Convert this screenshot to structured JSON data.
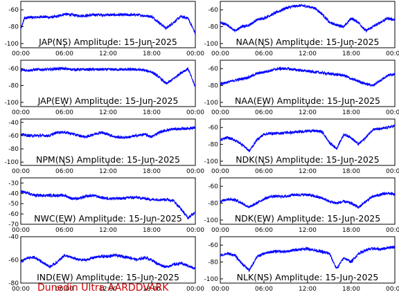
{
  "footer": "Dunedin Ultra AARDDVARK",
  "colors": {
    "trace": "#0000ff",
    "axis": "#000000",
    "footer": "#cc0000"
  },
  "chart_data": [
    {
      "type": "line",
      "title": "JAP(NS) Amplitude: 15-Jun-2025",
      "x_ticks": [
        "00:00",
        "06:00",
        "12:00",
        "18:00",
        "00:00"
      ],
      "xlim": [
        0,
        24
      ],
      "y_ticks": [
        -100,
        -80,
        -60
      ],
      "ylim": [
        -105,
        -50
      ],
      "series": [
        {
          "x": [
            0,
            0.5,
            1,
            2,
            3,
            4,
            5,
            6,
            7,
            8,
            9,
            10,
            11,
            12,
            13,
            14,
            15,
            16,
            17,
            18,
            19,
            20,
            21,
            22,
            23,
            24
          ],
          "y": [
            -83,
            -70,
            -69,
            -69,
            -68,
            -69,
            -68,
            -65,
            -66,
            -67,
            -67,
            -66,
            -66,
            -66,
            -66,
            -66,
            -66,
            -66,
            -67,
            -68,
            -75,
            -82,
            -75,
            -68,
            -70,
            -88
          ]
        }
      ]
    },
    {
      "type": "line",
      "title": "NAA(NS) Amplitude: 15-Jun-2025",
      "x_ticks": [
        "00:00",
        "06:00",
        "12:00",
        "18:00",
        "00:00"
      ],
      "xlim": [
        0,
        24
      ],
      "y_ticks": [
        -100,
        -80,
        -60
      ],
      "ylim": [
        -105,
        -50
      ],
      "series": [
        {
          "x": [
            0,
            1,
            2,
            3,
            4,
            5,
            6,
            7,
            8,
            9,
            10,
            11,
            12,
            13,
            14,
            15,
            16,
            17,
            18,
            19,
            20,
            21,
            22,
            23,
            24
          ],
          "y": [
            -75,
            -78,
            -85,
            -80,
            -78,
            -72,
            -70,
            -66,
            -62,
            -58,
            -56,
            -55,
            -56,
            -58,
            -65,
            -75,
            -78,
            -80,
            -70,
            -75,
            -85,
            -80,
            -75,
            -70,
            -72
          ]
        }
      ]
    },
    {
      "type": "line",
      "title": "JAP(EW) Amplitude: 15-Jun-2025",
      "x_ticks": [
        "00:00",
        "06:00",
        "12:00",
        "18:00",
        "00:00"
      ],
      "xlim": [
        0,
        24
      ],
      "y_ticks": [
        -100,
        -80,
        -60
      ],
      "ylim": [
        -105,
        -50
      ],
      "series": [
        {
          "x": [
            0,
            1,
            2,
            3,
            4,
            5,
            6,
            7,
            8,
            9,
            10,
            11,
            12,
            13,
            14,
            15,
            16,
            17,
            18,
            19,
            20,
            21,
            22,
            23,
            24
          ],
          "y": [
            -62,
            -62,
            -61,
            -61,
            -61,
            -60,
            -60,
            -61,
            -61,
            -61,
            -61,
            -61,
            -61,
            -61,
            -61,
            -61,
            -61,
            -62,
            -64,
            -70,
            -78,
            -72,
            -65,
            -60,
            -82
          ]
        }
      ]
    },
    {
      "type": "line",
      "title": "NAA(EW) Amplitude: 15-Jun-2025",
      "x_ticks": [
        "00:00",
        "06:00",
        "12:00",
        "18:00",
        "00:00"
      ],
      "xlim": [
        0,
        24
      ],
      "y_ticks": [
        -100,
        -80,
        -60
      ],
      "ylim": [
        -105,
        -50
      ],
      "series": [
        {
          "x": [
            0,
            1,
            2,
            3,
            4,
            5,
            6,
            7,
            8,
            9,
            10,
            11,
            12,
            13,
            14,
            15,
            16,
            17,
            18,
            19,
            20,
            21,
            22,
            23,
            24
          ],
          "y": [
            -78,
            -76,
            -74,
            -72,
            -70,
            -66,
            -64,
            -62,
            -60,
            -60,
            -61,
            -62,
            -63,
            -64,
            -65,
            -66,
            -67,
            -68,
            -72,
            -75,
            -78,
            -80,
            -74,
            -68,
            -66
          ]
        }
      ]
    },
    {
      "type": "line",
      "title": "NPM(NS) Amplitude: 15-Jun-2025",
      "x_ticks": [
        "00:00",
        "06:00",
        "12:00",
        "18:00",
        "00:00"
      ],
      "xlim": [
        0,
        24
      ],
      "y_ticks": [
        -100,
        -80,
        -60,
        -40
      ],
      "ylim": [
        -105,
        -35
      ],
      "series": [
        {
          "x": [
            0,
            1,
            2,
            3,
            4,
            5,
            6,
            7,
            8,
            9,
            10,
            11,
            12,
            13,
            14,
            15,
            16,
            17,
            18,
            19,
            20,
            21,
            22,
            23,
            24
          ],
          "y": [
            -58,
            -60,
            -60,
            -60,
            -60,
            -55,
            -55,
            -57,
            -60,
            -62,
            -58,
            -55,
            -58,
            -62,
            -63,
            -62,
            -60,
            -58,
            -62,
            -55,
            -52,
            -50,
            -50,
            -49,
            -48
          ]
        }
      ]
    },
    {
      "type": "line",
      "title": "NDK(NS) Amplitude: 15-Jun-2025",
      "x_ticks": [
        "00:00",
        "06:00",
        "12:00",
        "18:00",
        "00:00"
      ],
      "xlim": [
        0,
        24
      ],
      "y_ticks": [
        -100,
        -80,
        -60
      ],
      "ylim": [
        -105,
        -50
      ],
      "series": [
        {
          "x": [
            0,
            1,
            2,
            3,
            4,
            5,
            6,
            7,
            8,
            9,
            10,
            11,
            12,
            13,
            14,
            15,
            16,
            17,
            18,
            19,
            20,
            21,
            22,
            23,
            24
          ],
          "y": [
            -75,
            -72,
            -75,
            -80,
            -88,
            -75,
            -68,
            -67,
            -67,
            -66,
            -66,
            -65,
            -64,
            -64,
            -65,
            -78,
            -85,
            -68,
            -72,
            -80,
            -72,
            -62,
            -62,
            -60,
            -58
          ]
        }
      ]
    },
    {
      "type": "line",
      "title": "NWC(EW) Amplitude: 15-Jun-2025",
      "x_ticks": [
        "00:00",
        "06:00",
        "12:00",
        "18:00",
        "00:00"
      ],
      "xlim": [
        0,
        24
      ],
      "y_ticks": [
        -70,
        -60,
        -50,
        -40,
        -30
      ],
      "ylim": [
        -70,
        -25
      ],
      "series": [
        {
          "x": [
            0,
            1,
            2,
            3,
            4,
            5,
            6,
            7,
            8,
            9,
            10,
            11,
            12,
            13,
            14,
            15,
            16,
            17,
            18,
            19,
            20,
            21,
            22,
            23,
            24
          ],
          "y": [
            -38,
            -40,
            -42,
            -42,
            -42,
            -42,
            -42,
            -45,
            -45,
            -43,
            -42,
            -44,
            -45,
            -45,
            -45,
            -44,
            -44,
            -45,
            -46,
            -46,
            -46,
            -47,
            -55,
            -64,
            -58
          ]
        }
      ]
    },
    {
      "type": "line",
      "title": "NDK(EW) Amplitude: 15-Jun-2025",
      "x_ticks": [
        "00:00",
        "06:00",
        "12:00",
        "18:00",
        "00:00"
      ],
      "xlim": [
        0,
        24
      ],
      "y_ticks": [
        -100,
        -80,
        -60
      ],
      "ylim": [
        -105,
        -50
      ],
      "series": [
        {
          "x": [
            0,
            1,
            2,
            3,
            4,
            5,
            6,
            7,
            8,
            9,
            10,
            11,
            12,
            13,
            14,
            15,
            16,
            17,
            18,
            19,
            20,
            21,
            22,
            23,
            24
          ],
          "y": [
            -78,
            -75,
            -76,
            -80,
            -85,
            -80,
            -75,
            -72,
            -72,
            -72,
            -70,
            -70,
            -70,
            -72,
            -74,
            -78,
            -80,
            -78,
            -80,
            -85,
            -78,
            -72,
            -70,
            -68,
            -70
          ]
        }
      ]
    },
    {
      "type": "line",
      "title": "IND(EW) Amplitude: 15-Jun-2025",
      "x_ticks": [
        "00:00",
        "06:00",
        "12:00",
        "18:00",
        "00:00"
      ],
      "xlim": [
        0,
        24
      ],
      "y_ticks": [
        -80,
        -60,
        -40
      ],
      "ylim": [
        -80,
        -40
      ],
      "series": [
        {
          "x": [
            0,
            1,
            2,
            3,
            4,
            5,
            6,
            7,
            8,
            9,
            10,
            11,
            12,
            13,
            14,
            15,
            16,
            17,
            18,
            19,
            20,
            21,
            22,
            23,
            24
          ],
          "y": [
            -62,
            -58,
            -58,
            -62,
            -66,
            -62,
            -56,
            -58,
            -60,
            -60,
            -58,
            -57,
            -57,
            -56,
            -57,
            -58,
            -60,
            -58,
            -60,
            -64,
            -66,
            -64,
            -63,
            -65,
            -68
          ]
        }
      ]
    },
    {
      "type": "line",
      "title": "NLK(NS) Amplitude: 15-Jun-2025",
      "x_ticks": [
        "00:00",
        "06:00",
        "12:00",
        "18:00",
        "00:00"
      ],
      "xlim": [
        0,
        24
      ],
      "y_ticks": [
        -100,
        -80,
        -60
      ],
      "ylim": [
        -105,
        -50
      ],
      "series": [
        {
          "x": [
            0,
            1,
            2,
            3,
            4,
            5,
            6,
            7,
            8,
            9,
            10,
            11,
            12,
            13,
            14,
            15,
            16,
            17,
            18,
            19,
            20,
            21,
            22,
            23,
            24
          ],
          "y": [
            -72,
            -70,
            -72,
            -82,
            -90,
            -74,
            -70,
            -68,
            -67,
            -68,
            -66,
            -65,
            -64,
            -66,
            -68,
            -70,
            -88,
            -75,
            -80,
            -70,
            -66,
            -64,
            -65,
            -63,
            -62
          ]
        }
      ]
    }
  ]
}
